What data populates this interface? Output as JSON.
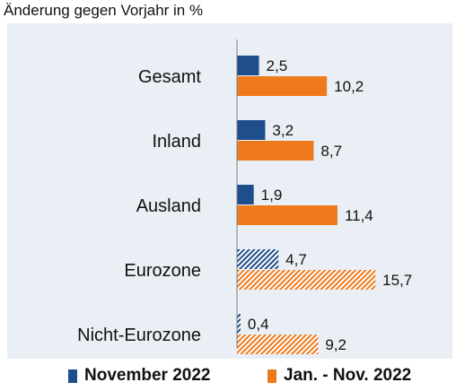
{
  "chart_data": {
    "type": "bar",
    "orientation": "horizontal",
    "subtitle": "Änderung gegen Vorjahr in %",
    "categories": [
      "Gesamt",
      "Inland",
      "Ausland",
      "Eurozone",
      "Nicht-Eurozone"
    ],
    "series": [
      {
        "name": "November 2022",
        "color": "#1f4e8c",
        "values": [
          2.5,
          3.2,
          1.9,
          4.7,
          0.4
        ],
        "labels": [
          "2,5",
          "3,2",
          "1,9",
          "4,7",
          "0,4"
        ]
      },
      {
        "name": "Jan. - Nov. 2022",
        "color": "#ee7a1c",
        "values": [
          10.2,
          8.7,
          11.4,
          15.7,
          9.2
        ],
        "labels": [
          "10,2",
          "8,7",
          "11,4",
          "15,7",
          "9,2"
        ]
      }
    ],
    "hatched_categories": [
      "Eurozone",
      "Nicht-Eurozone"
    ],
    "xlim": [
      0,
      16
    ],
    "grid": false,
    "legend_position": "bottom",
    "background_color": "#e9eff4",
    "axis_color": "#7f7f7f"
  }
}
